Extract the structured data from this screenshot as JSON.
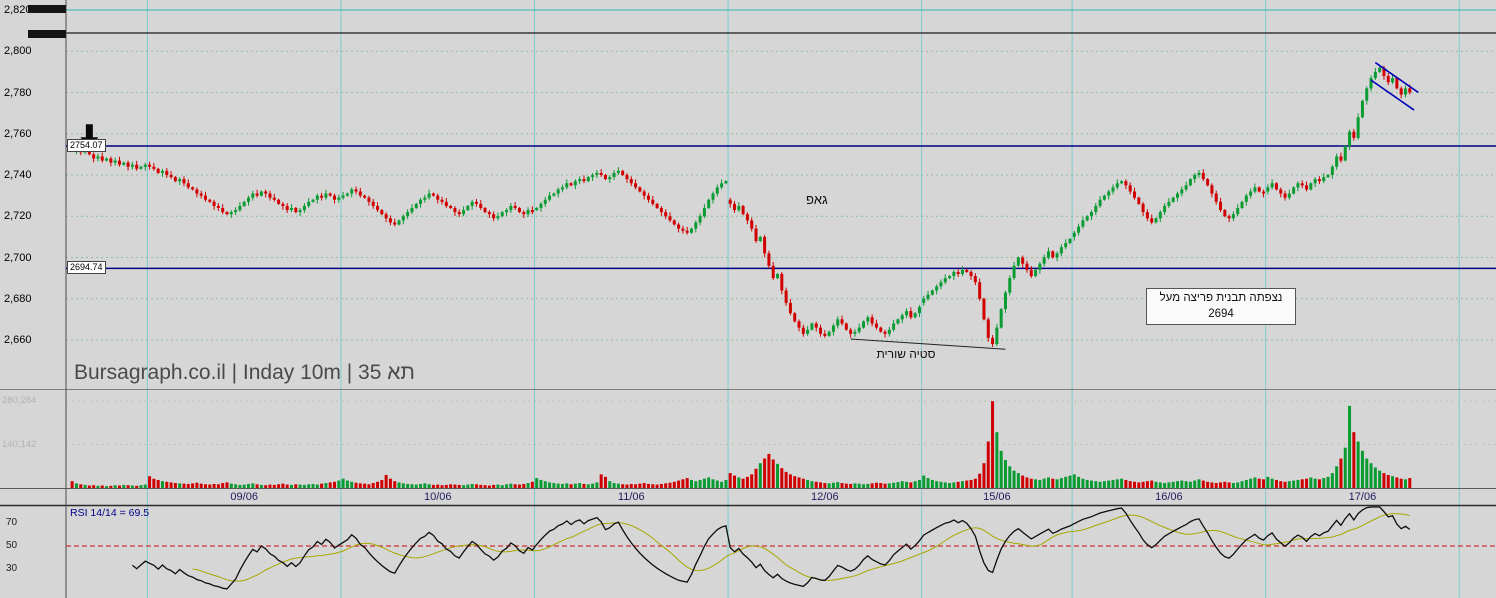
{
  "watermark": "Bursagraph.co.il | Inday 10m | 35 תא",
  "annotations": {
    "gap": "גאפ",
    "divergence": "סטיה שורית",
    "breakout_line1": "נצפתה תבנית פריצה מעל",
    "breakout_line2": "2694"
  },
  "levels": [
    {
      "label": "2754.07",
      "value": 2754.07
    },
    {
      "label": "2694.74",
      "value": 2694.74
    }
  ],
  "price_axis": [
    {
      "label": "2,820",
      "value": 2820
    },
    {
      "label": "2,800",
      "value": 2800
    },
    {
      "label": "2,780",
      "value": 2780
    },
    {
      "label": "2,760",
      "value": 2760
    },
    {
      "label": "2,740",
      "value": 2740
    },
    {
      "label": "2,720",
      "value": 2720
    },
    {
      "label": "2,700",
      "value": 2700
    },
    {
      "label": "2,680",
      "value": 2680
    },
    {
      "label": "2,660",
      "value": 2660
    }
  ],
  "volume_axis": [
    {
      "label": "280,284",
      "value": 280.284
    },
    {
      "label": "140,142",
      "value": 140.142
    }
  ],
  "rsi_panel": {
    "legend": "RSI 14/14 = 69.5",
    "midline": 50,
    "ticks": [
      {
        "label": "70",
        "value": 70
      },
      {
        "label": "50",
        "value": 50
      },
      {
        "label": "30",
        "value": 30
      }
    ]
  },
  "colors": {
    "up": "#0a9b32",
    "down": "#d10000",
    "level_line": "#00007f",
    "grid_v": "#5fc9c9",
    "grid_h": "#4aa865",
    "rsi_line": "#0d0d0d",
    "rsi_ma": "#a8a800",
    "rsi_mid": "#d03030",
    "flag": "#0000bb"
  },
  "chart_data": {
    "type": "candlestick",
    "interval": "10m",
    "ylim": [
      2660,
      2820
    ],
    "indicators": {
      "rsi_period": 14,
      "rsi_smoothing": 14
    },
    "days": [
      {
        "date": "",
        "open": 2753,
        "closes": [
          2752,
          2753,
          2751,
          2752,
          2750,
          2748,
          2749,
          2747,
          2748,
          2746,
          2747,
          2745,
          2746,
          2744,
          2745,
          2743,
          2744,
          2745
        ],
        "volumes": [
          22,
          15,
          12,
          10,
          8,
          9,
          7,
          8,
          6,
          7,
          9,
          8,
          10,
          9,
          8,
          7,
          9,
          11
        ]
      },
      {
        "date": "09/06",
        "open": 2745,
        "closes": [
          2744,
          2743,
          2741,
          2742,
          2740,
          2739,
          2737,
          2738,
          2736,
          2734,
          2733,
          2731,
          2730,
          2728,
          2727,
          2725,
          2724,
          2722,
          2721,
          2722,
          2723,
          2725,
          2727,
          2729,
          2731,
          2730,
          2732,
          2731,
          2729,
          2728,
          2726,
          2725,
          2723,
          2724,
          2722,
          2723,
          2725,
          2727,
          2728,
          2730,
          2729,
          2731,
          2730,
          2728,
          2729
        ],
        "volumes": [
          38,
          30,
          26,
          22,
          20,
          18,
          16,
          15,
          14,
          13,
          15,
          17,
          14,
          12,
          11,
          13,
          12,
          16,
          18,
          14,
          12,
          10,
          11,
          13,
          15,
          12,
          10,
          9,
          11,
          10,
          12,
          14,
          11,
          10,
          12,
          11,
          10,
          12,
          13,
          11,
          14,
          16,
          18,
          20,
          24
        ]
      },
      {
        "date": "10/06",
        "open": 2729,
        "closes": [
          2730,
          2731,
          2733,
          2732,
          2730,
          2729,
          2727,
          2725,
          2723,
          2721,
          2719,
          2717,
          2716,
          2718,
          2720,
          2722,
          2724,
          2726,
          2728,
          2729,
          2731,
          2730,
          2728,
          2727,
          2725,
          2724,
          2722,
          2721,
          2723,
          2725,
          2727,
          2726,
          2724,
          2722,
          2721,
          2719,
          2720,
          2722,
          2723,
          2725,
          2724,
          2722,
          2721,
          2723,
          2722
        ],
        "volumes": [
          30,
          24,
          20,
          17,
          15,
          14,
          12,
          16,
          20,
          26,
          42,
          30,
          22,
          18,
          15,
          13,
          12,
          11,
          13,
          15,
          12,
          10,
          11,
          9,
          10,
          12,
          11,
          10,
          9,
          11,
          13,
          12,
          10,
          9,
          8,
          10,
          11,
          9,
          12,
          14,
          12,
          11,
          13,
          16,
          20
        ]
      },
      {
        "date": "11/06",
        "open": 2723,
        "closes": [
          2724,
          2726,
          2728,
          2730,
          2731,
          2733,
          2734,
          2736,
          2735,
          2737,
          2738,
          2737,
          2739,
          2740,
          2741,
          2740,
          2738,
          2739,
          2741,
          2742,
          2740,
          2738,
          2736,
          2734,
          2732,
          2730,
          2728,
          2726,
          2724,
          2722,
          2720,
          2718,
          2716,
          2714,
          2713,
          2712,
          2714,
          2717,
          2720,
          2724,
          2728,
          2731,
          2734,
          2736,
          2737
        ],
        "volumes": [
          32,
          26,
          22,
          18,
          16,
          14,
          13,
          15,
          12,
          14,
          16,
          13,
          12,
          14,
          18,
          44,
          36,
          22,
          16,
          14,
          12,
          11,
          13,
          12,
          14,
          16,
          13,
          12,
          11,
          13,
          15,
          17,
          20,
          24,
          28,
          32,
          26,
          22,
          26,
          30,
          34,
          28,
          24,
          20,
          26
        ]
      },
      {
        "date": "12/06",
        "open": 2728,
        "closes": [
          2726,
          2723,
          2725,
          2721,
          2718,
          2714,
          2708,
          2710,
          2702,
          2696,
          2690,
          2692,
          2684,
          2678,
          2673,
          2669,
          2666,
          2663,
          2665,
          2668,
          2666,
          2663,
          2662,
          2664,
          2667,
          2670,
          2668,
          2665,
          2663,
          2664,
          2666,
          2669,
          2671,
          2668,
          2666,
          2664,
          2663,
          2665,
          2668,
          2670,
          2672,
          2674,
          2671,
          2673,
          2676
        ],
        "volumes": [
          48,
          40,
          34,
          30,
          36,
          44,
          62,
          80,
          95,
          110,
          92,
          78,
          64,
          52,
          44,
          38,
          34,
          30,
          26,
          22,
          20,
          18,
          16,
          15,
          17,
          19,
          16,
          14,
          13,
          15,
          14,
          12,
          13,
          15,
          17,
          16,
          14,
          15,
          17,
          19,
          22,
          20,
          18,
          22,
          26
        ]
      },
      {
        "date": "15/06",
        "open": 2678,
        "closes": [
          2680,
          2682,
          2684,
          2686,
          2688,
          2690,
          2691,
          2693,
          2692,
          2694,
          2693,
          2691,
          2688,
          2680,
          2670,
          2661,
          2658,
          2666,
          2675,
          2683,
          2690,
          2696,
          2700,
          2697,
          2694,
          2691,
          2694,
          2697,
          2700,
          2703,
          2700,
          2702,
          2705,
          2707,
          2709
        ],
        "volumes": [
          40,
          32,
          26,
          22,
          20,
          18,
          16,
          18,
          20,
          22,
          24,
          26,
          30,
          46,
          80,
          150,
          280,
          180,
          120,
          90,
          70,
          56,
          48,
          40,
          34,
          30,
          28,
          26,
          30,
          34,
          30,
          28,
          32,
          36,
          40
        ]
      },
      {
        "date": "16/06",
        "open": 2710,
        "closes": [
          2712,
          2715,
          2718,
          2720,
          2722,
          2725,
          2728,
          2730,
          2732,
          2734,
          2736,
          2737,
          2735,
          2732,
          2729,
          2726,
          2722,
          2719,
          2717,
          2719,
          2722,
          2725,
          2727,
          2729,
          2731,
          2733,
          2735,
          2738,
          2740,
          2741,
          2738,
          2735,
          2731,
          2727,
          2723,
          2720,
          2719,
          2721,
          2724,
          2727,
          2730,
          2732,
          2734,
          2732,
          2731
        ],
        "volumes": [
          44,
          36,
          30,
          26,
          24,
          22,
          20,
          22,
          24,
          26,
          28,
          30,
          26,
          22,
          20,
          18,
          20,
          22,
          24,
          20,
          18,
          16,
          18,
          20,
          22,
          24,
          22,
          20,
          24,
          28,
          24,
          20,
          18,
          16,
          18,
          20,
          18,
          16,
          18,
          22,
          26,
          30,
          34,
          30,
          28
        ]
      },
      {
        "date": "17/06",
        "open": 2732,
        "closes": [
          2734,
          2736,
          2733,
          2731,
          2729,
          2731,
          2734,
          2736,
          2735,
          2733,
          2736,
          2738,
          2737,
          2739,
          2740,
          2744,
          2749,
          2747,
          2754,
          2761,
          2758,
          2768,
          2776,
          2782,
          2787,
          2790,
          2792,
          2788,
          2785,
          2787,
          2782,
          2779,
          2782,
          2780
        ],
        "volumes": [
          36,
          30,
          26,
          22,
          20,
          22,
          24,
          26,
          28,
          30,
          34,
          30,
          28,
          32,
          36,
          48,
          70,
          95,
          130,
          265,
          180,
          150,
          120,
          95,
          80,
          66,
          56,
          48,
          42,
          38,
          34,
          30,
          28,
          32
        ]
      }
    ],
    "trend_lines": [
      {
        "name": "bullish-divergence",
        "from_bar": 181,
        "from_price": 2660.5,
        "to_bar": 217,
        "to_price": 2655.5,
        "color": "#222222",
        "width": 1
      },
      {
        "name": "flag-upper",
        "from_bar": 303,
        "from_price": 2794.5,
        "to_bar": 313,
        "to_price": 2780,
        "color": "#0000bb",
        "width": 1.6
      },
      {
        "name": "flag-lower",
        "from_bar": 302,
        "from_price": 2786,
        "to_bar": 312,
        "to_price": 2771.5,
        "color": "#0000bb",
        "width": 1.6
      }
    ],
    "arrow_marker": {
      "bar": 4,
      "tip_price": 2753
    }
  }
}
